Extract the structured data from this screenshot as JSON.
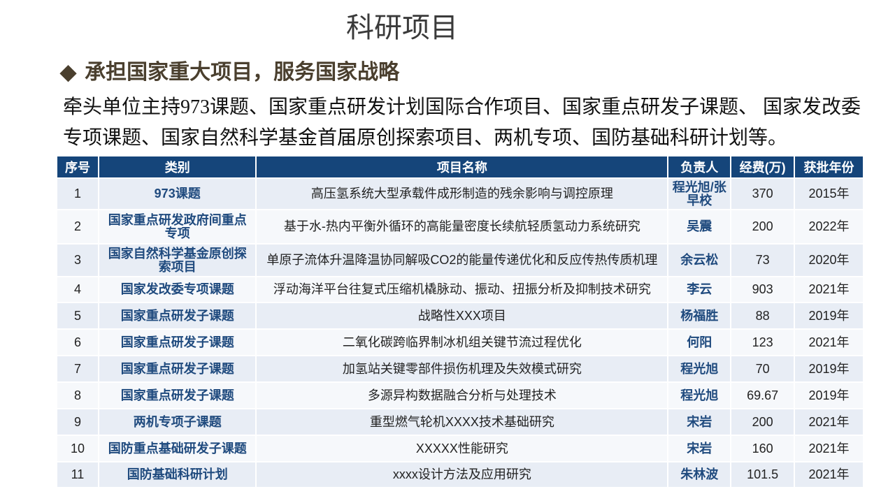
{
  "title": "科研项目",
  "heading": {
    "icon": "diamond-bullet",
    "text": "承担国家重大项目，服务国家战略"
  },
  "description": "牵头单位主持973课题、国家重点研发计划国际合作项目、国家重点研发子课题、 国家发改委专项课题、国家自然科学基金首届原创探索项目、两机专项、国防基础科研计划等。",
  "colors": {
    "header_bg": "#15457a",
    "row_light": "#e8edf5",
    "row_alt": "#f6f8fb",
    "accent_text": "#1f4a7e",
    "heading": "#4a3f2e"
  },
  "table": {
    "columns": [
      "序号",
      "类别",
      "项目名称",
      "负责人",
      "经费(万)",
      "获批年份"
    ],
    "rows": [
      {
        "no": "1",
        "category": "973课题",
        "name": "高压氢系统大型承载件成形制造的残余影响与调控原理",
        "lead": "程光旭/张早校",
        "funding": "370",
        "year": "2015年"
      },
      {
        "no": "2",
        "category": "国家重点研发政府间重点专项",
        "name": "基于水-热内平衡外循环的高能量密度长续航轻质氢动力系统研究",
        "lead": "吴震",
        "funding": "200",
        "year": "2022年"
      },
      {
        "no": "3",
        "category": "国家自然科学基金原创探索项目",
        "name": "单原子流体升温降温协同解吸CO2的能量传递优化和反应传热传质机理",
        "lead": "余云松",
        "funding": "73",
        "year": "2020年"
      },
      {
        "no": "4",
        "category": "国家发改委专项课题",
        "name": "浮动海洋平台往复式压缩机橇脉动、振动、扭振分析及抑制技术研究",
        "lead": "李云",
        "funding": "903",
        "year": "2021年"
      },
      {
        "no": "5",
        "category": "国家重点研发子课题",
        "name": "战略性XXX项目",
        "lead": "杨福胜",
        "funding": "88",
        "year": "2019年"
      },
      {
        "no": "6",
        "category": "国家重点研发子课题",
        "name": "二氧化碳跨临界制冰机组关键节流过程优化",
        "lead": "何阳",
        "funding": "123",
        "year": "2021年"
      },
      {
        "no": "7",
        "category": "国家重点研发子课题",
        "name": "加氢站关键零部件损伤机理及失效模式研究",
        "lead": "程光旭",
        "funding": "70",
        "year": "2019年"
      },
      {
        "no": "8",
        "category": "国家重点研发子课题",
        "name": "多源异构数据融合分析与处理技术",
        "lead": "程光旭",
        "funding": "69.67",
        "year": "2019年"
      },
      {
        "no": "9",
        "category": "两机专项子课题",
        "name": "重型燃气轮机XXXX技术基础研究",
        "lead": "宋岩",
        "funding": "200",
        "year": "2021年"
      },
      {
        "no": "10",
        "category": "国防重点基础研发子课题",
        "name": "XXXXX性能研究",
        "lead": "宋岩",
        "funding": "160",
        "year": "2021年"
      },
      {
        "no": "11",
        "category": "国防基础科研计划",
        "name": "xxxx设计方法及应用研究",
        "lead": "朱林波",
        "funding": "101.5",
        "year": "2021年"
      }
    ]
  }
}
